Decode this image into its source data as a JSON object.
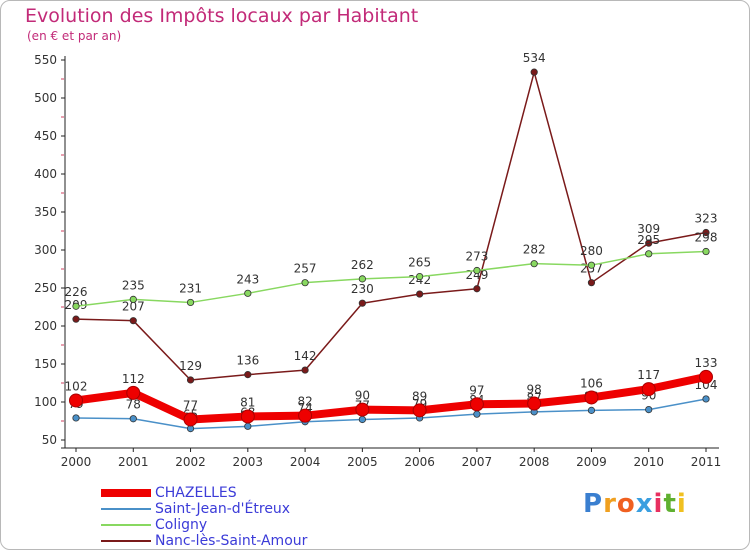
{
  "header": {
    "title": "Evolution des Impôts locaux par Habitant",
    "subtitle": "(en € et par an)"
  },
  "brand": {
    "letters": [
      "P",
      "r",
      "o",
      "x",
      "i",
      "t",
      "i"
    ],
    "colors": [
      "#3a7fd0",
      "#f0a020",
      "#f06020",
      "#3a9fe0",
      "#e83060",
      "#60b030",
      "#f0c020"
    ]
  },
  "chart_data": {
    "type": "line",
    "x": [
      "2000",
      "2001",
      "2002",
      "2003",
      "2004",
      "2005",
      "2006",
      "2007",
      "2008",
      "2009",
      "2010",
      "2011"
    ],
    "ylim": [
      50,
      550
    ],
    "yticks": [
      "50",
      "100",
      "150",
      "200",
      "250",
      "300",
      "350",
      "400",
      "450",
      "500",
      "550"
    ],
    "grid": false,
    "legend_position": "bottom-left",
    "series": [
      {
        "name": "Nanc-lès-Saint-Amour",
        "color": "#7a1a1a",
        "values": [
          209,
          207,
          129,
          136,
          142,
          230,
          242,
          249,
          534,
          257,
          309,
          323
        ],
        "labels": [
          "209",
          "207",
          "129",
          "136",
          "142",
          "230",
          "242",
          "249",
          "534",
          "257",
          "309",
          "323"
        ]
      },
      {
        "name": "Coligny",
        "color": "#88d860",
        "values": [
          226,
          235,
          231,
          243,
          257,
          262,
          265,
          273,
          282,
          280,
          295,
          298
        ],
        "labels": [
          "226",
          "235",
          "231",
          "243",
          "257",
          "262",
          "265",
          "273",
          "282",
          "280",
          "295",
          "298"
        ]
      },
      {
        "name": "Saint-Jean-d'Étreux",
        "color": "#4a90c8",
        "values": [
          79,
          78,
          65,
          68,
          74,
          77,
          79,
          84,
          87,
          89,
          90,
          104
        ],
        "labels": [
          "79",
          "78",
          "65",
          "68",
          "74",
          "77",
          "79",
          "84",
          "87",
          "89",
          "90",
          "104"
        ]
      },
      {
        "name": "CHAZELLES",
        "color": "#ee0000",
        "values": [
          102,
          112,
          77,
          81,
          82,
          90,
          89,
          97,
          98,
          106,
          117,
          133
        ],
        "labels": [
          "102",
          "112",
          "77",
          "81",
          "82",
          "90",
          "89",
          "97",
          "98",
          "106",
          "117",
          "133"
        ]
      }
    ],
    "legend": [
      {
        "name": "CHAZELLES",
        "color": "#ee0000"
      },
      {
        "name": "Saint-Jean-d'Étreux",
        "color": "#4a90c8"
      },
      {
        "name": "Coligny",
        "color": "#88d860"
      },
      {
        "name": "Nanc-lès-Saint-Amour",
        "color": "#7a1a1a"
      }
    ]
  }
}
